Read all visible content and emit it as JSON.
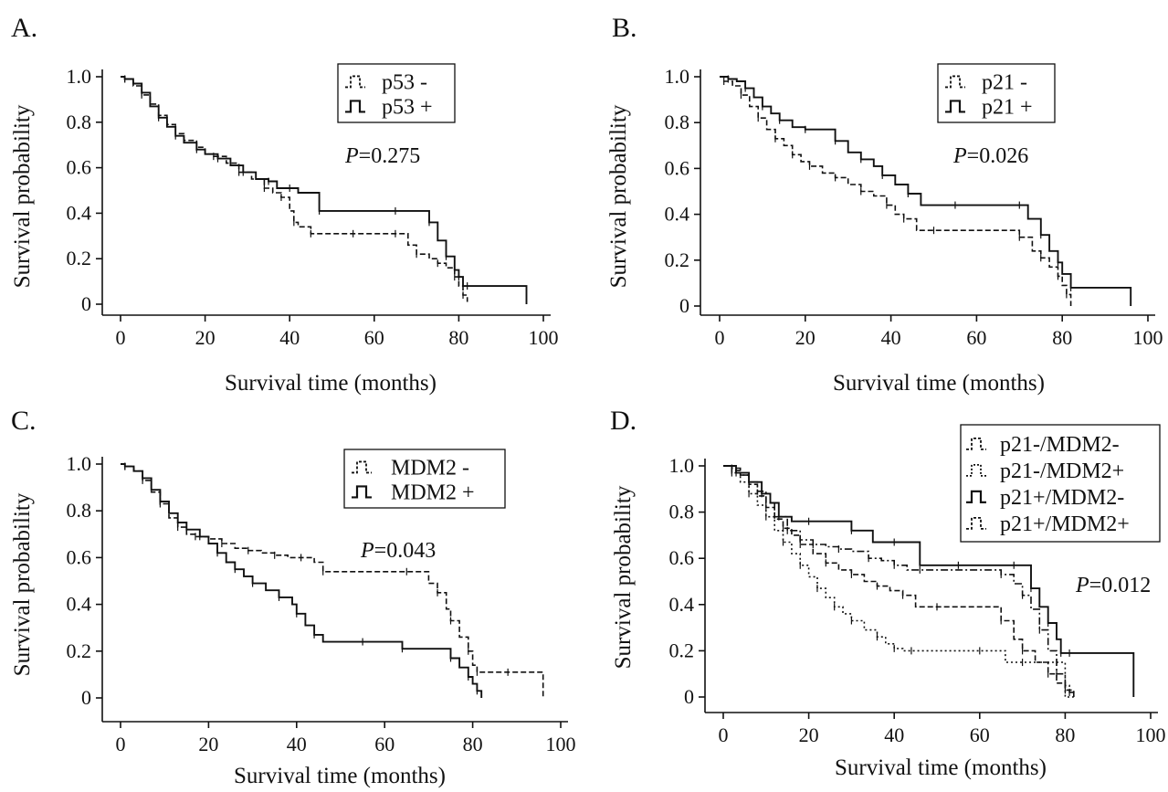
{
  "chart_data": [
    {
      "panel": "A.",
      "type": "line",
      "xlabel": "Survival time (months)",
      "ylabel": "Survival probability",
      "xlim": [
        0,
        100
      ],
      "ylim": [
        0,
        1
      ],
      "xticks": [
        "0",
        "20",
        "40",
        "60",
        "80",
        "100"
      ],
      "yticks": [
        "0",
        "0.2",
        "0.4",
        "0.6",
        "0.8",
        "1.0"
      ],
      "pvalue_label": "P",
      "pvalue_text": "=0.275",
      "legend_position": "top-right",
      "series": [
        {
          "name": "p53  -",
          "style": "dashed",
          "x": [
            0,
            1,
            3,
            5,
            7,
            9,
            11,
            13,
            15,
            18,
            20,
            22,
            25,
            28,
            31,
            34,
            36,
            38,
            40,
            41,
            42,
            45,
            48,
            55,
            60,
            65,
            68,
            70,
            73,
            75,
            77,
            79,
            80,
            81,
            82
          ],
          "y": [
            1.0,
            0.99,
            0.96,
            0.92,
            0.88,
            0.83,
            0.79,
            0.75,
            0.72,
            0.69,
            0.66,
            0.65,
            0.62,
            0.58,
            0.55,
            0.51,
            0.49,
            0.47,
            0.41,
            0.36,
            0.34,
            0.31,
            0.31,
            0.31,
            0.31,
            0.31,
            0.26,
            0.22,
            0.2,
            0.18,
            0.16,
            0.12,
            0.08,
            0.04,
            0.01
          ]
        },
        {
          "name": "p53  +",
          "style": "solid",
          "x": [
            0,
            1,
            3,
            5,
            7,
            9,
            11,
            13,
            15,
            18,
            20,
            23,
            26,
            29,
            32,
            35,
            37,
            40,
            42,
            47,
            55,
            65,
            70,
            73,
            75,
            77,
            79,
            80,
            81,
            82,
            90,
            96
          ],
          "y": [
            1.0,
            0.99,
            0.97,
            0.93,
            0.87,
            0.82,
            0.78,
            0.74,
            0.71,
            0.68,
            0.66,
            0.64,
            0.61,
            0.58,
            0.55,
            0.54,
            0.51,
            0.51,
            0.49,
            0.41,
            0.41,
            0.41,
            0.41,
            0.36,
            0.28,
            0.21,
            0.15,
            0.12,
            0.08,
            0.08,
            0.08,
            0.0
          ]
        }
      ]
    },
    {
      "panel": "B.",
      "type": "line",
      "xlabel": "Survival time (months)",
      "ylabel": "Survival probability",
      "xlim": [
        0,
        100
      ],
      "ylim": [
        0,
        1
      ],
      "xticks": [
        "0",
        "20",
        "40",
        "60",
        "80",
        "100"
      ],
      "yticks": [
        "0",
        "0.2",
        "0.4",
        "0.6",
        "0.8",
        "1.0"
      ],
      "pvalue_label": "P",
      "pvalue_text": "=0.026",
      "legend_position": "top-right",
      "series": [
        {
          "name": "p21  -",
          "style": "dashed",
          "x": [
            0,
            1,
            3,
            5,
            7,
            9,
            11,
            13,
            15,
            17,
            19,
            21,
            24,
            27,
            30,
            33,
            36,
            39,
            41,
            43,
            46,
            50,
            60,
            70,
            73,
            75,
            77,
            79,
            80,
            81,
            82
          ],
          "y": [
            1.0,
            0.98,
            0.96,
            0.92,
            0.87,
            0.82,
            0.77,
            0.73,
            0.7,
            0.66,
            0.63,
            0.61,
            0.58,
            0.56,
            0.53,
            0.5,
            0.48,
            0.44,
            0.4,
            0.38,
            0.33,
            0.33,
            0.33,
            0.3,
            0.24,
            0.21,
            0.17,
            0.13,
            0.09,
            0.05,
            0.0
          ]
        },
        {
          "name": "p21  +",
          "style": "solid",
          "x": [
            0,
            2,
            4,
            6,
            8,
            10,
            12,
            14,
            17,
            20,
            24,
            27,
            30,
            33,
            36,
            38,
            41,
            44,
            47,
            55,
            65,
            70,
            72,
            75,
            77,
            79,
            80,
            82,
            90,
            96
          ],
          "y": [
            1.0,
            0.99,
            0.98,
            0.95,
            0.91,
            0.87,
            0.84,
            0.81,
            0.78,
            0.77,
            0.77,
            0.72,
            0.67,
            0.64,
            0.61,
            0.57,
            0.53,
            0.49,
            0.44,
            0.44,
            0.44,
            0.44,
            0.38,
            0.31,
            0.24,
            0.19,
            0.14,
            0.08,
            0.08,
            0.0
          ]
        }
      ]
    },
    {
      "panel": "C.",
      "type": "line",
      "xlabel": "Survival time (months)",
      "ylabel": "Survival probability",
      "xlim": [
        0,
        100
      ],
      "ylim": [
        0,
        1
      ],
      "xticks": [
        "0",
        "20",
        "40",
        "60",
        "80",
        "100"
      ],
      "yticks": [
        "0",
        "0.2",
        "0.4",
        "0.6",
        "0.8",
        "1.0"
      ],
      "pvalue_label": "P",
      "pvalue_text": "=0.043",
      "legend_position": "top-right",
      "series": [
        {
          "name": "MDM2 -",
          "style": "dashed",
          "x": [
            0,
            1,
            3,
            5,
            7,
            9,
            11,
            13,
            15,
            17,
            20,
            23,
            26,
            29,
            32,
            35,
            38,
            41,
            44,
            46,
            55,
            65,
            70,
            72,
            74,
            75,
            77,
            79,
            80,
            81,
            82,
            88,
            96
          ],
          "y": [
            1.0,
            0.99,
            0.97,
            0.93,
            0.88,
            0.83,
            0.77,
            0.73,
            0.7,
            0.69,
            0.68,
            0.66,
            0.64,
            0.63,
            0.62,
            0.61,
            0.6,
            0.6,
            0.58,
            0.54,
            0.54,
            0.54,
            0.49,
            0.45,
            0.38,
            0.33,
            0.26,
            0.2,
            0.14,
            0.11,
            0.11,
            0.11,
            0.0
          ]
        },
        {
          "name": "MDM2 +",
          "style": "solid",
          "x": [
            0,
            1,
            3,
            5,
            7,
            9,
            11,
            13,
            15,
            18,
            20,
            22,
            24,
            26,
            28,
            30,
            33,
            36,
            39,
            40,
            42,
            44,
            46,
            55,
            60,
            64,
            70,
            75,
            77,
            79,
            80,
            81,
            82
          ],
          "y": [
            1.0,
            0.99,
            0.97,
            0.94,
            0.89,
            0.84,
            0.79,
            0.75,
            0.72,
            0.69,
            0.66,
            0.62,
            0.58,
            0.55,
            0.52,
            0.49,
            0.46,
            0.43,
            0.4,
            0.36,
            0.31,
            0.27,
            0.24,
            0.24,
            0.24,
            0.21,
            0.21,
            0.17,
            0.13,
            0.09,
            0.06,
            0.03,
            0.0
          ]
        }
      ]
    },
    {
      "panel": "D.",
      "type": "line",
      "xlabel": "Survival time (months)",
      "ylabel": "Survival probability",
      "xlim": [
        0,
        100
      ],
      "ylim": [
        0,
        1
      ],
      "xticks": [
        "0",
        "20",
        "40",
        "60",
        "80",
        "100"
      ],
      "yticks": [
        "0",
        "0.2",
        "0.4",
        "0.6",
        "0.8",
        "1.0"
      ],
      "pvalue_label": "P",
      "pvalue_text": "=0.012",
      "legend_position": "top-right",
      "series": [
        {
          "name": "p21-/MDM2-",
          "style": "dashed",
          "x": [
            0,
            2,
            4,
            6,
            8,
            10,
            12,
            14,
            16,
            18,
            21,
            24,
            27,
            30,
            33,
            36,
            39,
            42,
            45,
            50,
            60,
            65,
            68,
            70,
            73,
            76,
            78,
            80,
            82
          ],
          "y": [
            1.0,
            0.98,
            0.96,
            0.92,
            0.87,
            0.82,
            0.77,
            0.73,
            0.7,
            0.66,
            0.62,
            0.58,
            0.55,
            0.53,
            0.5,
            0.48,
            0.46,
            0.44,
            0.39,
            0.39,
            0.39,
            0.33,
            0.25,
            0.2,
            0.15,
            0.1,
            0.06,
            0.03,
            0.0
          ]
        },
        {
          "name": "p21-/MDM2+",
          "style": "dotted",
          "x": [
            0,
            2,
            4,
            6,
            8,
            10,
            12,
            14,
            16,
            18,
            20,
            22,
            24,
            26,
            28,
            30,
            33,
            36,
            38,
            40,
            42,
            44,
            50,
            60,
            66,
            70,
            75,
            78,
            80,
            82
          ],
          "y": [
            1.0,
            0.97,
            0.93,
            0.88,
            0.83,
            0.78,
            0.72,
            0.67,
            0.62,
            0.57,
            0.52,
            0.47,
            0.43,
            0.39,
            0.36,
            0.33,
            0.29,
            0.26,
            0.23,
            0.21,
            0.2,
            0.2,
            0.2,
            0.2,
            0.15,
            0.15,
            0.15,
            0.15,
            0.0,
            0.0
          ]
        },
        {
          "name": "p21+/MDM2-",
          "style": "solid",
          "x": [
            0,
            3,
            6,
            9,
            11,
            13,
            16,
            20,
            26,
            30,
            35,
            40,
            46,
            55,
            65,
            68,
            70,
            72,
            74,
            76,
            78,
            79,
            80,
            81,
            82,
            96
          ],
          "y": [
            1.0,
            0.97,
            0.93,
            0.88,
            0.84,
            0.78,
            0.76,
            0.76,
            0.76,
            0.72,
            0.67,
            0.67,
            0.57,
            0.57,
            0.57,
            0.57,
            0.57,
            0.47,
            0.39,
            0.32,
            0.25,
            0.19,
            0.19,
            0.19,
            0.19,
            0.0
          ]
        },
        {
          "name": "p21+/MDM2+",
          "style": "dashdot",
          "x": [
            0,
            2,
            4,
            6,
            8,
            10,
            12,
            15,
            18,
            21,
            24,
            27,
            30,
            34,
            37,
            40,
            43,
            46,
            55,
            65,
            68,
            70,
            72,
            74,
            76,
            78,
            80,
            81,
            82
          ],
          "y": [
            1.0,
            0.99,
            0.96,
            0.93,
            0.89,
            0.84,
            0.78,
            0.72,
            0.68,
            0.66,
            0.65,
            0.64,
            0.63,
            0.6,
            0.59,
            0.57,
            0.55,
            0.55,
            0.55,
            0.53,
            0.49,
            0.44,
            0.38,
            0.29,
            0.2,
            0.1,
            0.05,
            0.02,
            0.0
          ]
        }
      ]
    }
  ]
}
